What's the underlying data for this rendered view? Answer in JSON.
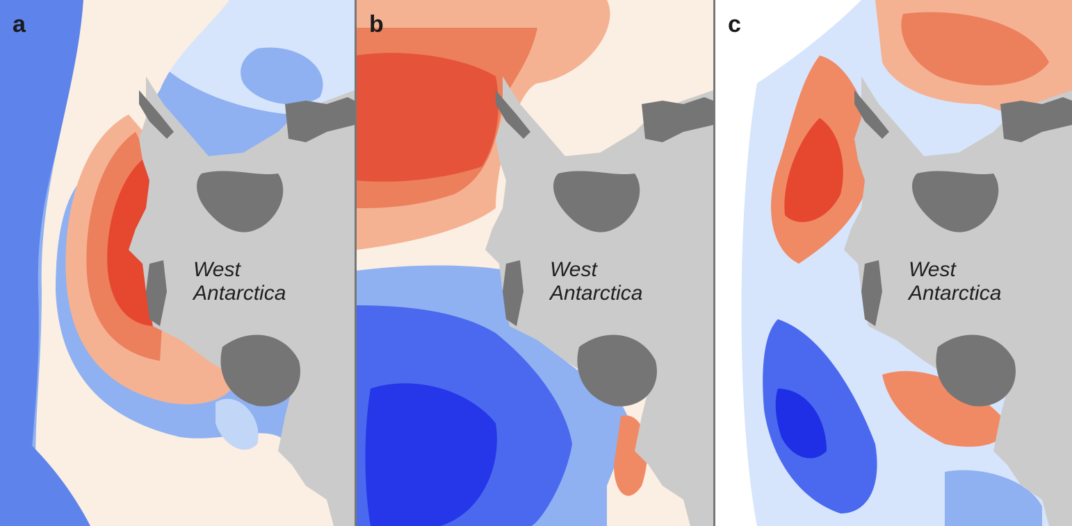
{
  "panels": [
    {
      "letter": "a",
      "label_line1": "West",
      "label_line2": "Antarctica"
    },
    {
      "letter": "b",
      "label_line1": "West",
      "label_line2": "Antarctica"
    },
    {
      "letter": "c",
      "label_line1": "West",
      "label_line2": "Antarctica"
    }
  ],
  "colors": {
    "warm_strong": "#e8442c",
    "warm_mid": "#f08a65",
    "warm_light": "#f7c9ad",
    "neutral": "#fbeee2",
    "cool_light": "#cfe0fb",
    "cool_mid": "#8ab0f2",
    "cool_strong": "#3352f0",
    "land_ice": "#cbcbcb",
    "ice_shelf": "#757575",
    "divider": "#777777"
  }
}
